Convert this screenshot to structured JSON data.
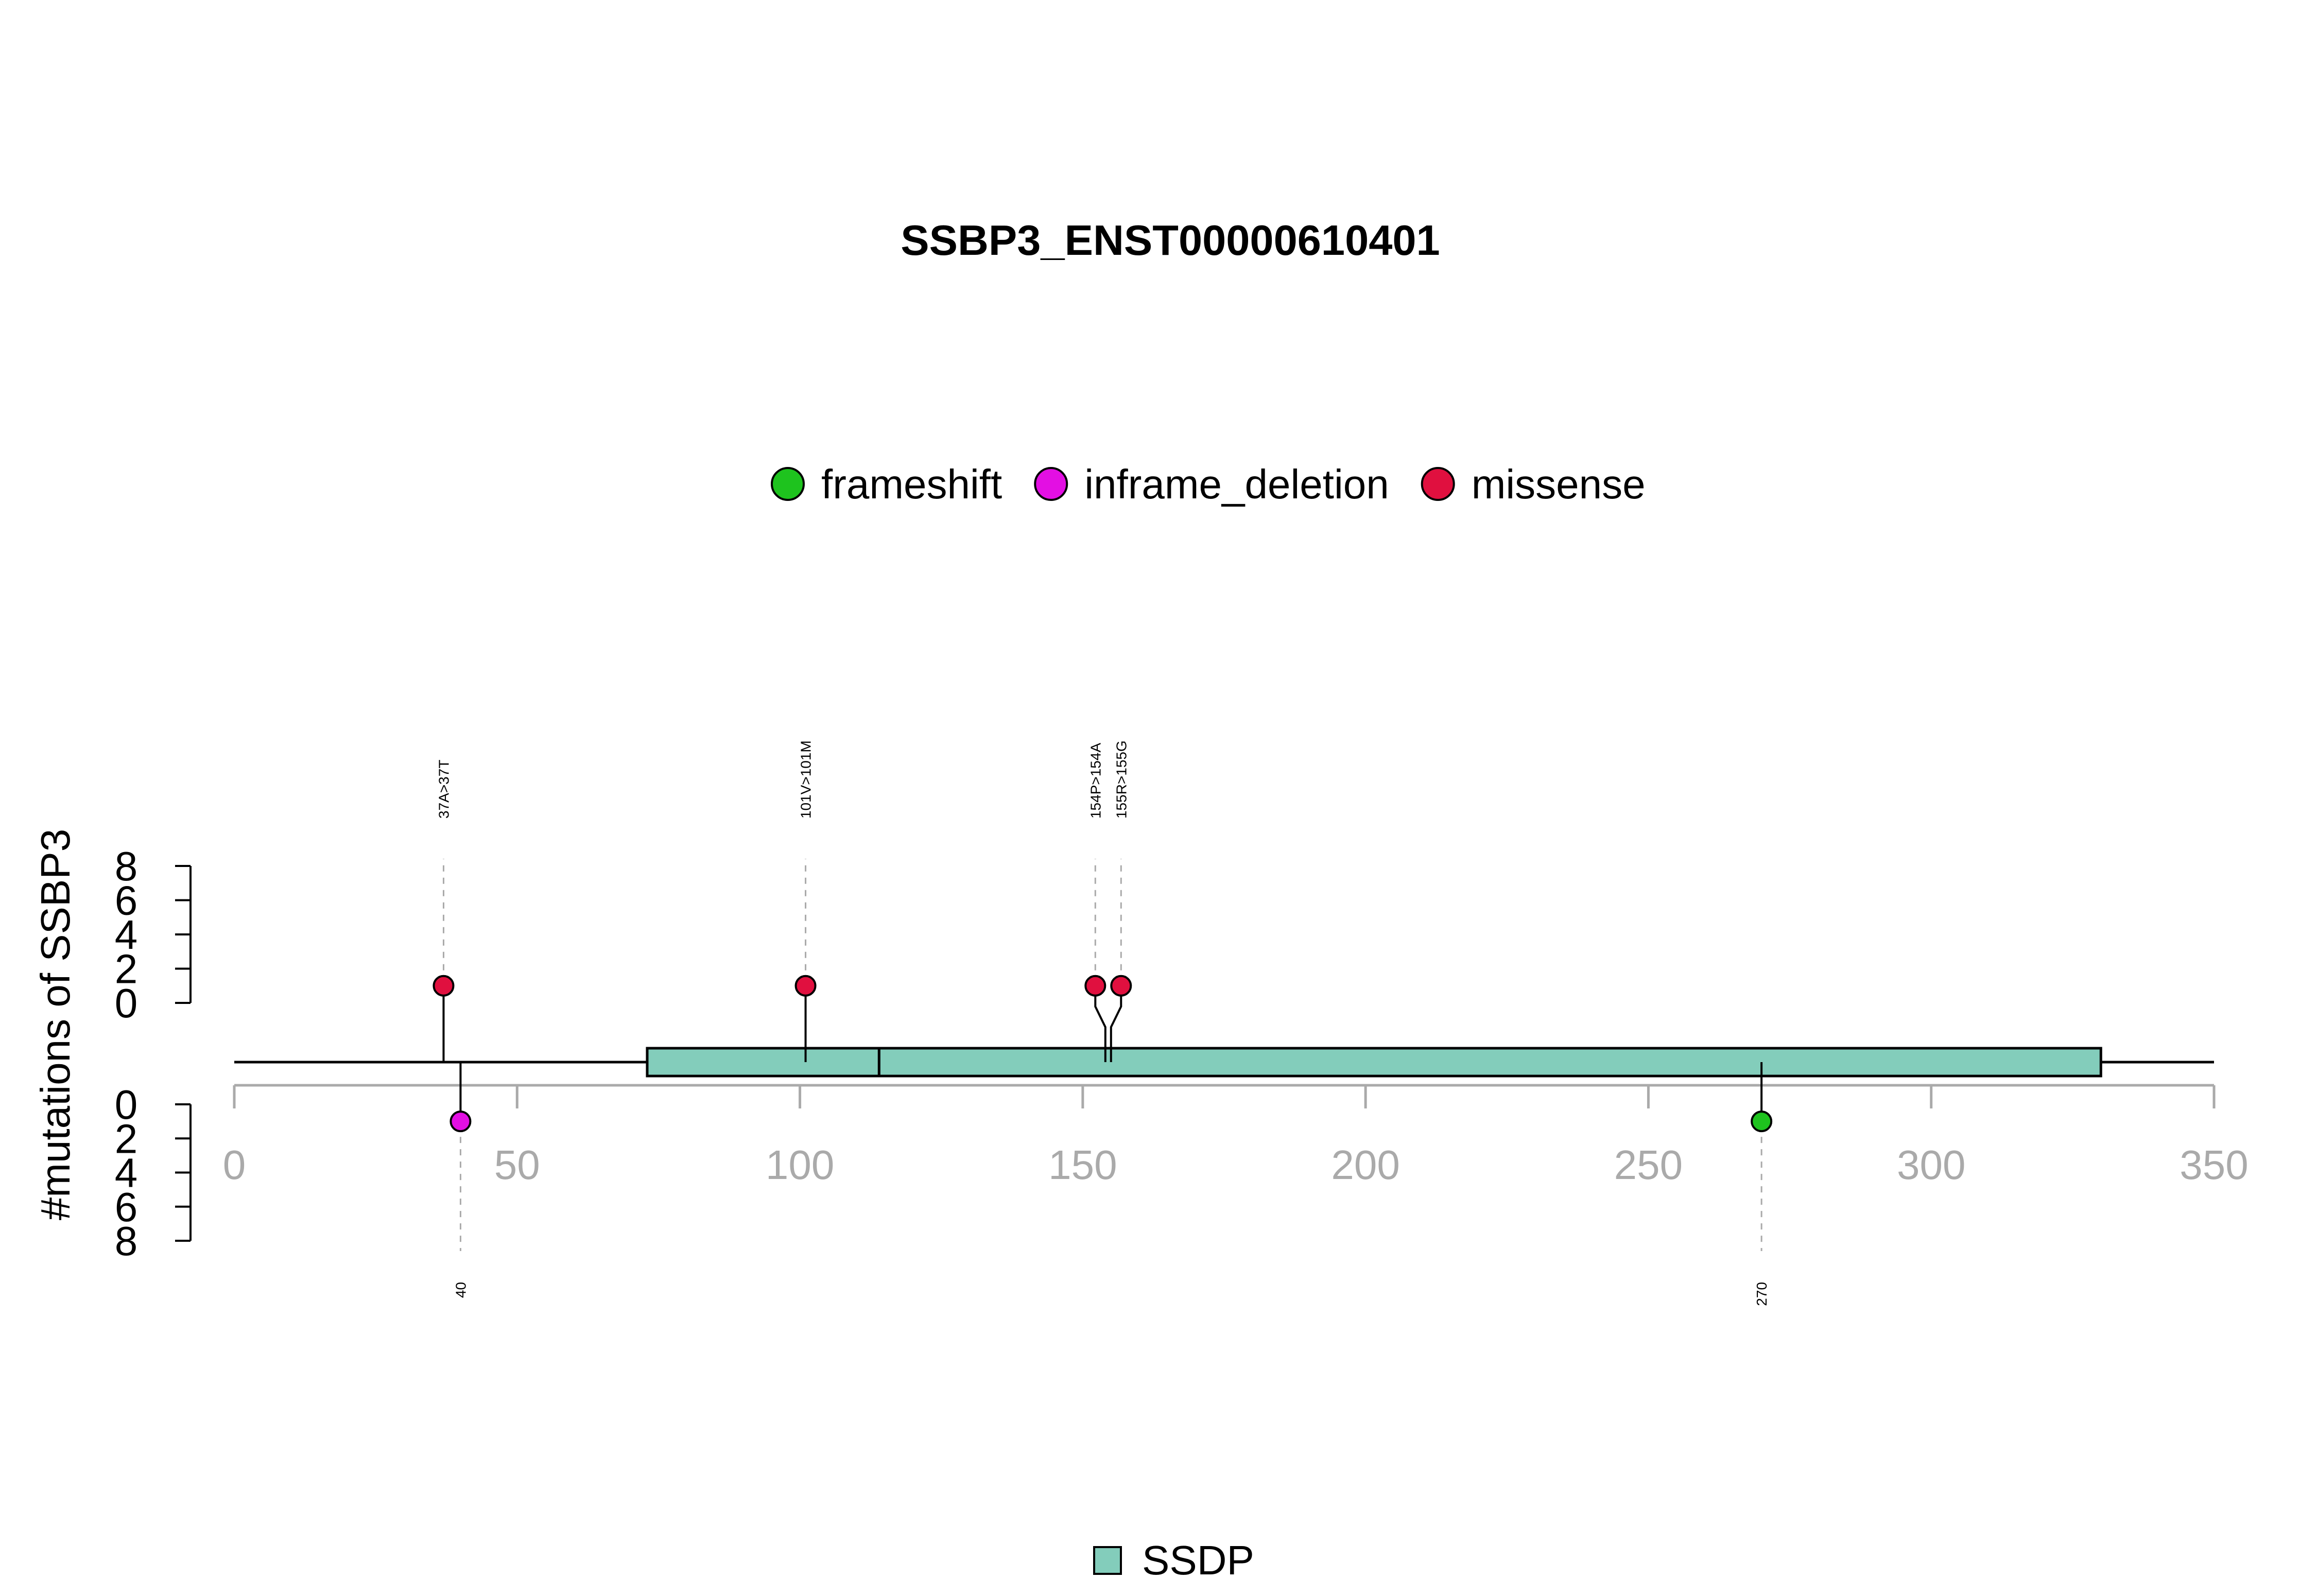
{
  "chart_data": {
    "type": "lollipop",
    "title": "SSBP3_ENST00000610401",
    "ylabel": "#mutations of SSBP3",
    "xlim": [
      0,
      350
    ],
    "x_ticks": [
      0,
      50,
      100,
      150,
      200,
      250,
      300,
      350
    ],
    "ylim": [
      0,
      8
    ],
    "y_ticks": [
      0,
      2,
      4,
      6,
      8
    ],
    "protein_length": 350,
    "legend_mutations": [
      {
        "name": "frameshift",
        "color": "#1ec31e"
      },
      {
        "name": "inframe_deletion",
        "color": "#e30fe3"
      },
      {
        "name": "missense",
        "color": "#e0103f"
      }
    ],
    "legend_domains": [
      {
        "name": "SSDP",
        "color": "#83cdbb"
      }
    ],
    "domains": [
      {
        "name": "SSDP",
        "start": 73,
        "end": 114,
        "color": "#83cdbb"
      },
      {
        "name": "SSDP",
        "start": 114,
        "end": 330,
        "color": "#83cdbb"
      }
    ],
    "mutations_top": [
      {
        "label": "37A>37T",
        "position": 37,
        "count": 1,
        "type": "missense"
      },
      {
        "label": "101V>101M",
        "position": 101,
        "count": 1,
        "type": "missense"
      },
      {
        "label": "154P>154A",
        "position": 154,
        "count": 1,
        "type": "missense"
      },
      {
        "label": "155R>155G",
        "position": 155,
        "count": 1,
        "type": "missense"
      }
    ],
    "mutations_bottom": [
      {
        "label": "40",
        "position": 40,
        "count": 1,
        "type": "inframe_deletion"
      },
      {
        "label": "270",
        "position": 270,
        "count": 1,
        "type": "frameshift"
      }
    ]
  }
}
